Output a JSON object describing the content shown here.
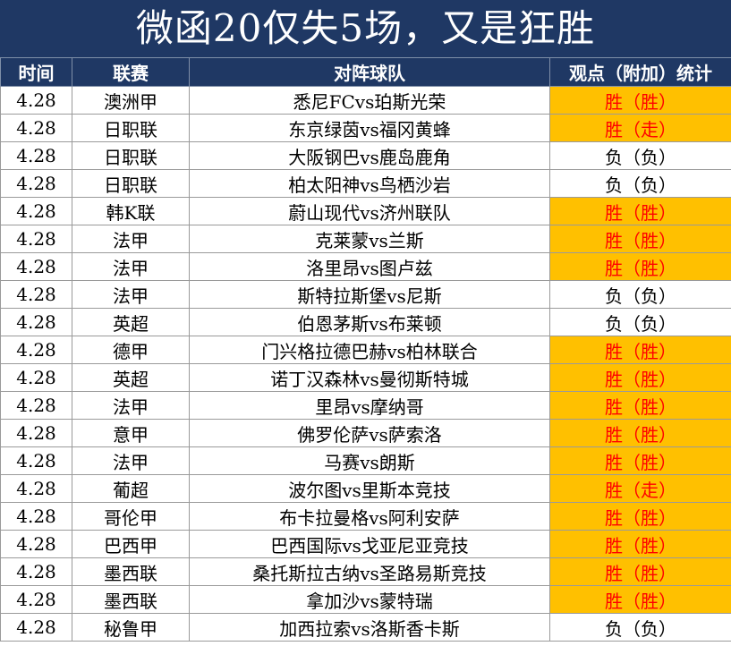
{
  "title": "微函20仅失5场，又是狂胜",
  "headers": {
    "time": "时间",
    "league": "联赛",
    "match": "对阵球队",
    "result": "观点（附加）统计"
  },
  "colors": {
    "header_bg": "#1f3864",
    "win_bg": "#ffc000",
    "win_text": "#ff0000"
  },
  "rows": [
    {
      "time": "4.28",
      "league": "澳洲甲",
      "match": "悉尼FCvs珀斯光荣",
      "result": "胜（胜）",
      "status": "win"
    },
    {
      "time": "4.28",
      "league": "日职联",
      "match": "东京绿茵vs福冈黄蜂",
      "result": "胜（走）",
      "status": "win"
    },
    {
      "time": "4.28",
      "league": "日职联",
      "match": "大阪钢巴vs鹿岛鹿角",
      "result": "负（负）",
      "status": "loss"
    },
    {
      "time": "4.28",
      "league": "日职联",
      "match": "柏太阳神vs鸟栖沙岩",
      "result": "负（负）",
      "status": "loss"
    },
    {
      "time": "4.28",
      "league": "韩K联",
      "match": "蔚山现代vs济州联队",
      "result": "胜（胜）",
      "status": "win"
    },
    {
      "time": "4.28",
      "league": "法甲",
      "match": "克莱蒙vs兰斯",
      "result": "胜（胜）",
      "status": "win"
    },
    {
      "time": "4.28",
      "league": "法甲",
      "match": "洛里昂vs图卢兹",
      "result": "胜（胜）",
      "status": "win"
    },
    {
      "time": "4.28",
      "league": "法甲",
      "match": "斯特拉斯堡vs尼斯",
      "result": "负（负）",
      "status": "loss"
    },
    {
      "time": "4.28",
      "league": "英超",
      "match": "伯恩茅斯vs布莱顿",
      "result": "负（负）",
      "status": "loss"
    },
    {
      "time": "4.28",
      "league": "德甲",
      "match": "门兴格拉德巴赫vs柏林联合",
      "result": "胜（胜）",
      "status": "win"
    },
    {
      "time": "4.28",
      "league": "英超",
      "match": "诺丁汉森林vs曼彻斯特城",
      "result": "胜（胜）",
      "status": "win"
    },
    {
      "time": "4.28",
      "league": "法甲",
      "match": "里昂vs摩纳哥",
      "result": "胜（胜）",
      "status": "win"
    },
    {
      "time": "4.28",
      "league": "意甲",
      "match": "佛罗伦萨vs萨索洛",
      "result": "胜（胜）",
      "status": "win"
    },
    {
      "time": "4.28",
      "league": "法甲",
      "match": "马赛vs朗斯",
      "result": "胜（胜）",
      "status": "win"
    },
    {
      "time": "4.28",
      "league": "葡超",
      "match": "波尔图vs里斯本竞技",
      "result": "胜（走）",
      "status": "win"
    },
    {
      "time": "4.28",
      "league": "哥伦甲",
      "match": "布卡拉曼格vs阿利安萨",
      "result": "胜（胜）",
      "status": "win"
    },
    {
      "time": "4.28",
      "league": "巴西甲",
      "match": "巴西国际vs戈亚尼亚竞技",
      "result": "胜（胜）",
      "status": "win"
    },
    {
      "time": "4.28",
      "league": "墨西联",
      "match": "桑托斯拉古纳vs圣路易斯竞技",
      "result": "胜（胜）",
      "status": "win"
    },
    {
      "time": "4.28",
      "league": "墨西联",
      "match": "拿加沙vs蒙特瑞",
      "result": "胜（胜）",
      "status": "win"
    },
    {
      "time": "4.28",
      "league": "秘鲁甲",
      "match": "加西拉索vs洛斯香卡斯",
      "result": "负（负）",
      "status": "loss"
    }
  ]
}
